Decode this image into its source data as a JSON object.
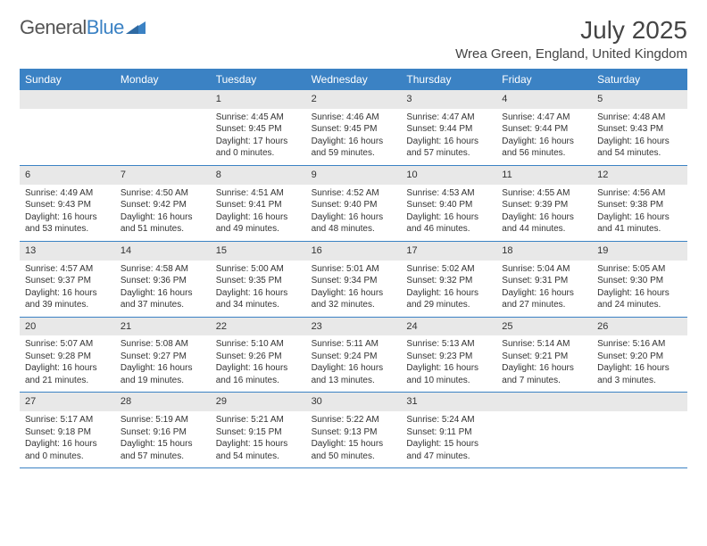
{
  "brand": {
    "part1": "General",
    "part2": "Blue"
  },
  "title": "July 2025",
  "location": "Wrea Green, England, United Kingdom",
  "dayNames": [
    "Sunday",
    "Monday",
    "Tuesday",
    "Wednesday",
    "Thursday",
    "Friday",
    "Saturday"
  ],
  "colors": {
    "headerBg": "#3b82c4",
    "headerText": "#ffffff",
    "dayNumBg": "#e8e8e8",
    "borderBlue": "#3b82c4",
    "logoBlue": "#3b82c4",
    "logoGray": "#555555",
    "textColor": "#333333",
    "background": "#ffffff"
  },
  "typography": {
    "titleFontSize": 28,
    "locationFontSize": 15,
    "dayHeaderFontSize": 12,
    "cellFontSize": 10
  },
  "layout": {
    "columns": 7,
    "startOffset": 2
  },
  "weeks": [
    [
      {
        "empty": true
      },
      {
        "empty": true
      },
      {
        "day": "1",
        "sunrise": "Sunrise: 4:45 AM",
        "sunset": "Sunset: 9:45 PM",
        "daylight": "Daylight: 17 hours and 0 minutes."
      },
      {
        "day": "2",
        "sunrise": "Sunrise: 4:46 AM",
        "sunset": "Sunset: 9:45 PM",
        "daylight": "Daylight: 16 hours and 59 minutes."
      },
      {
        "day": "3",
        "sunrise": "Sunrise: 4:47 AM",
        "sunset": "Sunset: 9:44 PM",
        "daylight": "Daylight: 16 hours and 57 minutes."
      },
      {
        "day": "4",
        "sunrise": "Sunrise: 4:47 AM",
        "sunset": "Sunset: 9:44 PM",
        "daylight": "Daylight: 16 hours and 56 minutes."
      },
      {
        "day": "5",
        "sunrise": "Sunrise: 4:48 AM",
        "sunset": "Sunset: 9:43 PM",
        "daylight": "Daylight: 16 hours and 54 minutes."
      }
    ],
    [
      {
        "day": "6",
        "sunrise": "Sunrise: 4:49 AM",
        "sunset": "Sunset: 9:43 PM",
        "daylight": "Daylight: 16 hours and 53 minutes."
      },
      {
        "day": "7",
        "sunrise": "Sunrise: 4:50 AM",
        "sunset": "Sunset: 9:42 PM",
        "daylight": "Daylight: 16 hours and 51 minutes."
      },
      {
        "day": "8",
        "sunrise": "Sunrise: 4:51 AM",
        "sunset": "Sunset: 9:41 PM",
        "daylight": "Daylight: 16 hours and 49 minutes."
      },
      {
        "day": "9",
        "sunrise": "Sunrise: 4:52 AM",
        "sunset": "Sunset: 9:40 PM",
        "daylight": "Daylight: 16 hours and 48 minutes."
      },
      {
        "day": "10",
        "sunrise": "Sunrise: 4:53 AM",
        "sunset": "Sunset: 9:40 PM",
        "daylight": "Daylight: 16 hours and 46 minutes."
      },
      {
        "day": "11",
        "sunrise": "Sunrise: 4:55 AM",
        "sunset": "Sunset: 9:39 PM",
        "daylight": "Daylight: 16 hours and 44 minutes."
      },
      {
        "day": "12",
        "sunrise": "Sunrise: 4:56 AM",
        "sunset": "Sunset: 9:38 PM",
        "daylight": "Daylight: 16 hours and 41 minutes."
      }
    ],
    [
      {
        "day": "13",
        "sunrise": "Sunrise: 4:57 AM",
        "sunset": "Sunset: 9:37 PM",
        "daylight": "Daylight: 16 hours and 39 minutes."
      },
      {
        "day": "14",
        "sunrise": "Sunrise: 4:58 AM",
        "sunset": "Sunset: 9:36 PM",
        "daylight": "Daylight: 16 hours and 37 minutes."
      },
      {
        "day": "15",
        "sunrise": "Sunrise: 5:00 AM",
        "sunset": "Sunset: 9:35 PM",
        "daylight": "Daylight: 16 hours and 34 minutes."
      },
      {
        "day": "16",
        "sunrise": "Sunrise: 5:01 AM",
        "sunset": "Sunset: 9:34 PM",
        "daylight": "Daylight: 16 hours and 32 minutes."
      },
      {
        "day": "17",
        "sunrise": "Sunrise: 5:02 AM",
        "sunset": "Sunset: 9:32 PM",
        "daylight": "Daylight: 16 hours and 29 minutes."
      },
      {
        "day": "18",
        "sunrise": "Sunrise: 5:04 AM",
        "sunset": "Sunset: 9:31 PM",
        "daylight": "Daylight: 16 hours and 27 minutes."
      },
      {
        "day": "19",
        "sunrise": "Sunrise: 5:05 AM",
        "sunset": "Sunset: 9:30 PM",
        "daylight": "Daylight: 16 hours and 24 minutes."
      }
    ],
    [
      {
        "day": "20",
        "sunrise": "Sunrise: 5:07 AM",
        "sunset": "Sunset: 9:28 PM",
        "daylight": "Daylight: 16 hours and 21 minutes."
      },
      {
        "day": "21",
        "sunrise": "Sunrise: 5:08 AM",
        "sunset": "Sunset: 9:27 PM",
        "daylight": "Daylight: 16 hours and 19 minutes."
      },
      {
        "day": "22",
        "sunrise": "Sunrise: 5:10 AM",
        "sunset": "Sunset: 9:26 PM",
        "daylight": "Daylight: 16 hours and 16 minutes."
      },
      {
        "day": "23",
        "sunrise": "Sunrise: 5:11 AM",
        "sunset": "Sunset: 9:24 PM",
        "daylight": "Daylight: 16 hours and 13 minutes."
      },
      {
        "day": "24",
        "sunrise": "Sunrise: 5:13 AM",
        "sunset": "Sunset: 9:23 PM",
        "daylight": "Daylight: 16 hours and 10 minutes."
      },
      {
        "day": "25",
        "sunrise": "Sunrise: 5:14 AM",
        "sunset": "Sunset: 9:21 PM",
        "daylight": "Daylight: 16 hours and 7 minutes."
      },
      {
        "day": "26",
        "sunrise": "Sunrise: 5:16 AM",
        "sunset": "Sunset: 9:20 PM",
        "daylight": "Daylight: 16 hours and 3 minutes."
      }
    ],
    [
      {
        "day": "27",
        "sunrise": "Sunrise: 5:17 AM",
        "sunset": "Sunset: 9:18 PM",
        "daylight": "Daylight: 16 hours and 0 minutes."
      },
      {
        "day": "28",
        "sunrise": "Sunrise: 5:19 AM",
        "sunset": "Sunset: 9:16 PM",
        "daylight": "Daylight: 15 hours and 57 minutes."
      },
      {
        "day": "29",
        "sunrise": "Sunrise: 5:21 AM",
        "sunset": "Sunset: 9:15 PM",
        "daylight": "Daylight: 15 hours and 54 minutes."
      },
      {
        "day": "30",
        "sunrise": "Sunrise: 5:22 AM",
        "sunset": "Sunset: 9:13 PM",
        "daylight": "Daylight: 15 hours and 50 minutes."
      },
      {
        "day": "31",
        "sunrise": "Sunrise: 5:24 AM",
        "sunset": "Sunset: 9:11 PM",
        "daylight": "Daylight: 15 hours and 47 minutes."
      },
      {
        "empty": true
      },
      {
        "empty": true
      }
    ]
  ]
}
